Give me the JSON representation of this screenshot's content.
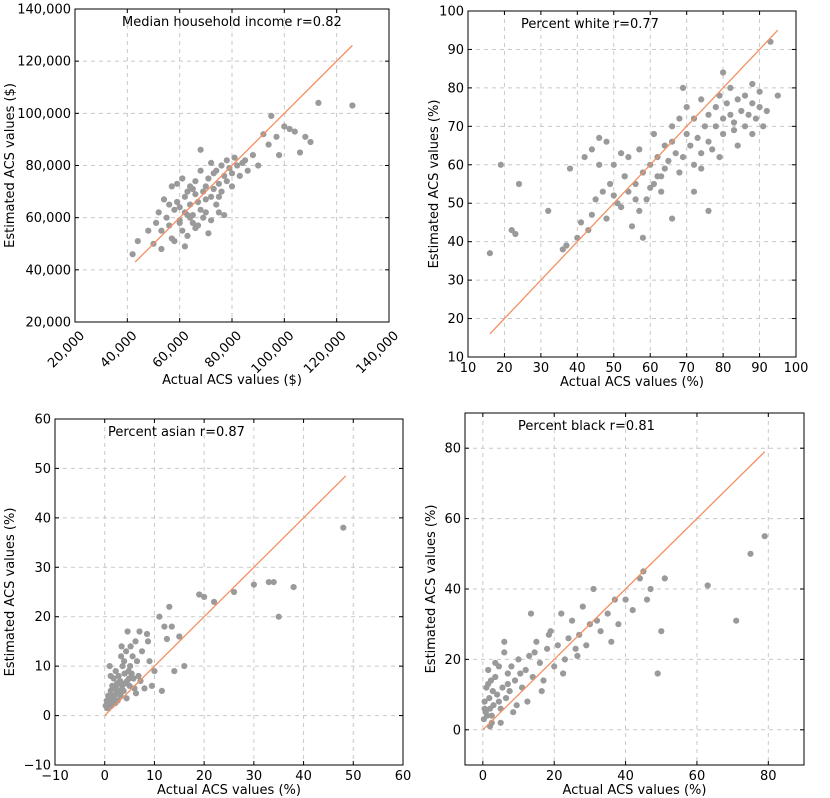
{
  "colors": {
    "points": "#9a9a9a",
    "fit_line": "#f39062",
    "grid": "#c8c8c8"
  },
  "chart_data": [
    {
      "type": "scatter",
      "title": "Median household income  r=0.82",
      "xlabel": "Actual ACS values ($)",
      "ylabel": "Estimated ACS values ($)",
      "xlim": [
        20000,
        140000
      ],
      "ylim": [
        20000,
        140000
      ],
      "xticks": [
        20000,
        40000,
        60000,
        80000,
        100000,
        120000,
        140000
      ],
      "xtick_labels": [
        "20,000",
        "40,000",
        "60,000",
        "80,000",
        "100,000",
        "120,000",
        "140,000"
      ],
      "yticks": [
        20000,
        40000,
        60000,
        80000,
        100000,
        120000,
        140000
      ],
      "ytick_labels": [
        "20,000",
        "40,000",
        "60,000",
        "80,000",
        "100,000",
        "120,000",
        "140,000"
      ],
      "xtick_rotation": 45,
      "fit_line": {
        "x": [
          43000,
          126000
        ],
        "y": [
          43000,
          126000
        ]
      },
      "x": [
        42000,
        44000,
        48000,
        50000,
        51000,
        52000,
        53000,
        54000,
        55000,
        56000,
        57000,
        58000,
        58000,
        59000,
        60000,
        61000,
        61000,
        62000,
        62000,
        63000,
        63000,
        64000,
        64000,
        65000,
        65000,
        66000,
        66000,
        67000,
        67000,
        68000,
        68000,
        69000,
        69000,
        70000,
        70000,
        71000,
        72000,
        72000,
        73000,
        74000,
        74000,
        75000,
        75000,
        76000,
        76000,
        77000,
        78000,
        78000,
        79000,
        80000,
        80000,
        81000,
        82000,
        83000,
        84000,
        86000,
        88000,
        90000,
        92000,
        94000,
        95000,
        97000,
        98000,
        100000,
        102000,
        104000,
        106000,
        108000,
        110000,
        113000,
        126000,
        53000,
        57000,
        60000,
        62000,
        65000,
        66000,
        70000,
        72000,
        75000,
        59000,
        63000,
        68000,
        71000,
        73000,
        77000,
        85000,
        60000,
        56000,
        64000
      ],
      "y": [
        46000,
        51000,
        55000,
        50000,
        58000,
        62000,
        48000,
        67000,
        60000,
        57000,
        72000,
        51000,
        63000,
        66000,
        59000,
        75000,
        55000,
        68000,
        62000,
        70000,
        53000,
        65000,
        72000,
        61000,
        58000,
        69000,
        74000,
        57000,
        66000,
        63000,
        78000,
        70000,
        60000,
        72000,
        67000,
        75000,
        68000,
        81000,
        71000,
        65000,
        78000,
        73000,
        62000,
        80000,
        70000,
        76000,
        82000,
        74000,
        79000,
        77000,
        72000,
        83000,
        80000,
        76000,
        81000,
        78000,
        84000,
        80000,
        92000,
        88000,
        99000,
        91000,
        84000,
        95000,
        94000,
        93000,
        85000,
        91000,
        89000,
        104000,
        103000,
        55000,
        52000,
        64000,
        49000,
        71000,
        56000,
        62000,
        59000,
        68000,
        73000,
        61000,
        86000,
        54000,
        77000,
        61000,
        82000,
        58000,
        65000,
        60000
      ]
    },
    {
      "type": "scatter",
      "title": "Percent white r=0.77",
      "xlabel": "Actual ACS values (%)",
      "ylabel": "Estimated ACS values (%)",
      "xlim": [
        10,
        100
      ],
      "ylim": [
        10,
        100
      ],
      "xticks": [
        10,
        20,
        30,
        40,
        50,
        60,
        70,
        80,
        90,
        100
      ],
      "xtick_labels": [
        "10",
        "20",
        "30",
        "40",
        "50",
        "60",
        "70",
        "80",
        "90",
        "100"
      ],
      "yticks": [
        10,
        20,
        30,
        40,
        50,
        60,
        70,
        80,
        90,
        100
      ],
      "ytick_labels": [
        "10",
        "20",
        "30",
        "40",
        "50",
        "60",
        "70",
        "80",
        "90",
        "100"
      ],
      "xtick_rotation": 0,
      "fit_line": {
        "x": [
          16,
          95
        ],
        "y": [
          16,
          95
        ]
      },
      "x": [
        16,
        19,
        22,
        23,
        24,
        32,
        36,
        37,
        38,
        40,
        41,
        42,
        43,
        44,
        45,
        46,
        47,
        48,
        49,
        50,
        50,
        51,
        52,
        53,
        54,
        54,
        55,
        56,
        57,
        57,
        58,
        59,
        60,
        60,
        61,
        62,
        62,
        63,
        64,
        64,
        65,
        66,
        66,
        67,
        68,
        68,
        69,
        70,
        70,
        71,
        72,
        72,
        73,
        74,
        74,
        75,
        76,
        76,
        77,
        78,
        78,
        79,
        80,
        80,
        81,
        82,
        82,
        83,
        84,
        85,
        86,
        86,
        87,
        88,
        88,
        89,
        90,
        90,
        91,
        92,
        93,
        95,
        44,
        48,
        53,
        58,
        61,
        66,
        72,
        76,
        80,
        84,
        88,
        46,
        52,
        56,
        63,
        69,
        74,
        79,
        83
      ],
      "y": [
        37,
        60,
        43,
        42,
        55,
        48,
        38,
        39,
        59,
        41,
        45,
        62,
        43,
        47,
        51,
        60,
        53,
        46,
        55,
        52,
        60,
        50,
        49,
        57,
        53,
        62,
        44,
        55,
        48,
        64,
        58,
        51,
        60,
        54,
        68,
        57,
        62,
        53,
        65,
        59,
        61,
        66,
        70,
        63,
        58,
        72,
        62,
        68,
        75,
        65,
        60,
        72,
        67,
        63,
        77,
        70,
        66,
        73,
        64,
        75,
        70,
        78,
        72,
        68,
        76,
        73,
        80,
        71,
        77,
        74,
        70,
        78,
        73,
        76,
        81,
        72,
        75,
        79,
        70,
        74,
        92,
        78,
        64,
        66,
        57,
        41,
        55,
        46,
        53,
        48,
        84,
        65,
        68,
        67,
        63,
        51,
        57,
        80,
        59,
        62,
        69
      ]
    },
    {
      "type": "scatter",
      "title": "Percent asian r=0.87",
      "xlabel": "Actual ACS values (%)",
      "ylabel": "Estimated ACS values (%)",
      "xlim": [
        -10,
        60
      ],
      "ylim": [
        -10,
        60
      ],
      "xticks": [
        -10,
        0,
        10,
        20,
        30,
        40,
        50,
        60
      ],
      "xtick_labels": [
        "−10",
        "0",
        "10",
        "20",
        "30",
        "40",
        "50",
        "60"
      ],
      "yticks": [
        -10,
        0,
        10,
        20,
        30,
        40,
        50,
        60
      ],
      "ytick_labels": [
        "−10",
        "0",
        "10",
        "20",
        "30",
        "40",
        "50",
        "60"
      ],
      "xtick_rotation": 0,
      "fit_line": {
        "x": [
          0,
          48.5
        ],
        "y": [
          0,
          48.5
        ]
      },
      "x": [
        0.2,
        0.4,
        0.5,
        0.7,
        0.8,
        1.0,
        1.1,
        1.2,
        1.3,
        1.5,
        1.6,
        1.7,
        1.8,
        2.0,
        2.1,
        2.2,
        2.4,
        2.5,
        2.6,
        2.8,
        3.0,
        3.1,
        3.2,
        3.4,
        3.5,
        3.6,
        3.8,
        4.0,
        4.1,
        4.3,
        4.5,
        4.6,
        4.8,
        5.0,
        5.2,
        5.4,
        5.6,
        5.8,
        6.0,
        6.2,
        6.5,
        6.8,
        7.0,
        7.5,
        8.0,
        8.5,
        9.0,
        9.5,
        10.0,
        11.0,
        12.0,
        12.5,
        13.0,
        14.0,
        15.0,
        16.0,
        19.0,
        20.0,
        22.0,
        26.0,
        30.0,
        33.0,
        34.0,
        35.0,
        38.0,
        48.0,
        1.2,
        2.3,
        3.3,
        4.4,
        5.1,
        6.3,
        7.2,
        8.7,
        11.5,
        13.5,
        2.6,
        3.9,
        1.5,
        4.9,
        2.0,
        0.9
      ],
      "y": [
        2.0,
        3.0,
        1.5,
        4.0,
        2.5,
        10.0,
        3.5,
        5.0,
        2.0,
        6.0,
        4.0,
        3.0,
        7.5,
        5.5,
        2.5,
        9.0,
        4.5,
        6.5,
        3.0,
        8.0,
        5.0,
        7.0,
        4.0,
        14.0,
        6.0,
        10.0,
        5.0,
        8.5,
        6.5,
        13.0,
        7.0,
        17.0,
        9.0,
        6.0,
        14.0,
        8.5,
        12.0,
        7.5,
        5.5,
        15.0,
        11.0,
        8.0,
        17.0,
        13.0,
        5.5,
        16.5,
        11.0,
        6.0,
        9.0,
        20.0,
        18.0,
        15.5,
        22.0,
        9.0,
        16.0,
        10.0,
        24.5,
        24.0,
        23.0,
        25.0,
        26.5,
        27.0,
        27.0,
        20.0,
        26.0,
        38.0,
        8.0,
        5.5,
        12.0,
        3.5,
        10.0,
        4.5,
        7.0,
        15.0,
        5.0,
        18.0,
        6.5,
        11.0,
        3.0,
        7.5,
        4.0,
        2.5
      ]
    },
    {
      "type": "scatter",
      "title": "Percent black r=0.81",
      "xlabel": "Actual ACS values (%)",
      "ylabel": "Estimated ACS values (%)",
      "xlim": [
        -5,
        90
      ],
      "ylim": [
        -10,
        90
      ],
      "xticks": [
        0,
        20,
        40,
        60,
        80
      ],
      "xtick_labels": [
        "0",
        "20",
        "40",
        "60",
        "80"
      ],
      "yticks": [
        0,
        20,
        40,
        60,
        80
      ],
      "ytick_labels": [
        "0",
        "20",
        "40",
        "60",
        "80"
      ],
      "xtick_rotation": 0,
      "fit_line": {
        "x": [
          0,
          79
        ],
        "y": [
          0,
          79
        ]
      },
      "x": [
        0.3,
        0.5,
        0.8,
        1.0,
        1.2,
        1.5,
        1.8,
        2.0,
        2.3,
        2.5,
        2.8,
        3.0,
        3.5,
        4.0,
        4.5,
        5.0,
        5.5,
        6.0,
        6.5,
        7.0,
        7.5,
        8.0,
        9.0,
        10.0,
        11.0,
        12.0,
        13.0,
        14.0,
        15.0,
        16.0,
        17.0,
        18.0,
        19.0,
        20.0,
        21.0,
        22.0,
        23.0,
        24.0,
        25.0,
        26.0,
        27.0,
        28.0,
        29.0,
        30.0,
        31.0,
        33.0,
        35.0,
        36.0,
        37.0,
        38.0,
        40.0,
        42.0,
        44.0,
        45.0,
        46.0,
        47.0,
        49.0,
        50.0,
        51.0,
        63.0,
        71.0,
        75.0,
        79.0,
        0.5,
        1.5,
        2.5,
        3.5,
        4.5,
        6.0,
        8.5,
        10.5,
        12.5,
        14.5,
        16.5,
        18.5,
        22.5,
        26.5,
        32.0,
        2.0,
        5.0,
        7.0,
        9.5,
        13.5
      ],
      "y": [
        3.0,
        8.0,
        5.0,
        12.0,
        4.0,
        17.0,
        9.0,
        6.0,
        14.0,
        2.0,
        11.0,
        7.0,
        15.0,
        10.0,
        18.0,
        6.0,
        12.0,
        22.0,
        9.0,
        16.0,
        11.0,
        18.0,
        14.0,
        20.0,
        12.0,
        17.0,
        21.0,
        15.0,
        25.0,
        19.0,
        14.0,
        23.0,
        28.0,
        18.0,
        24.0,
        33.0,
        20.0,
        26.0,
        31.0,
        23.0,
        27.0,
        35.0,
        24.0,
        30.0,
        40.0,
        28.0,
        33.0,
        25.0,
        37.0,
        30.0,
        37.0,
        34.0,
        43.0,
        45.0,
        37.0,
        40.0,
        16.0,
        28.0,
        43.0,
        41.0,
        31.0,
        50.0,
        55.0,
        6.0,
        13.0,
        4.0,
        19.0,
        8.0,
        25.0,
        5.0,
        16.0,
        8.0,
        22.0,
        11.0,
        27.0,
        16.0,
        21.0,
        31.0,
        1.0,
        2.0,
        13.0,
        7.0,
        33.0
      ]
    }
  ]
}
